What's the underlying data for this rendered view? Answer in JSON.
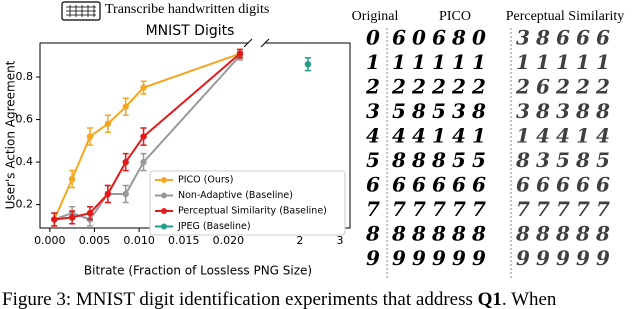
{
  "figure": {
    "instruction": "Transcribe handwritten digits",
    "caption": {
      "prefix": "Figure 3: MNIST digit identification experiments that address ",
      "bold": "Q1",
      "suffix": ". When"
    },
    "panel_headers": [
      "Original",
      "PICO",
      "Perceptual Similarity"
    ],
    "digit_grid": [
      [
        "0",
        "6",
        "0",
        "6",
        "8",
        "0",
        "3",
        "8",
        "6",
        "6",
        "6"
      ],
      [
        "1",
        "1",
        "1",
        "1",
        "1",
        "1",
        "1",
        "1",
        "1",
        "1",
        "1"
      ],
      [
        "2",
        "2",
        "2",
        "2",
        "2",
        "2",
        "2",
        "6",
        "2",
        "2",
        "2"
      ],
      [
        "3",
        "5",
        "8",
        "5",
        "3",
        "8",
        "3",
        "8",
        "3",
        "8",
        "8"
      ],
      [
        "4",
        "4",
        "4",
        "1",
        "4",
        "1",
        "1",
        "4",
        "4",
        "1",
        "4"
      ],
      [
        "5",
        "8",
        "8",
        "8",
        "5",
        "5",
        "8",
        "3",
        "5",
        "8",
        "5"
      ],
      [
        "6",
        "6",
        "6",
        "6",
        "6",
        "6",
        "6",
        "6",
        "6",
        "6",
        "6"
      ],
      [
        "7",
        "7",
        "7",
        "7",
        "7",
        "7",
        "7",
        "7",
        "7",
        "7",
        "7"
      ],
      [
        "8",
        "8",
        "8",
        "8",
        "8",
        "8",
        "8",
        "8",
        "8",
        "8",
        "8"
      ],
      [
        "9",
        "9",
        "9",
        "9",
        "9",
        "9",
        "9",
        "9",
        "9",
        "9",
        "9"
      ]
    ]
  },
  "chart_data": {
    "type": "line",
    "title": "MNIST Digits",
    "x_label": "Bitrate (Fraction of Lossless PNG Size)",
    "y_label": "User's Action Agreement",
    "ylim": [
      0.09,
      0.96
    ],
    "yticks": [
      0.2,
      0.4,
      0.6,
      0.8
    ],
    "x_axes": [
      {
        "xlim": [
          -0.0011,
          0.0222
        ],
        "xticks": [
          {
            "value": 0,
            "label": "0.000"
          },
          0.005,
          {
            "value": 0.01,
            "label": "0.010"
          },
          0.015,
          {
            "value": 0.02,
            "label": "0.020"
          }
        ]
      },
      {
        "xlim": [
          1.13,
          3.25
        ],
        "xticks": [
          2,
          3
        ]
      }
    ],
    "legend": "lower right",
    "series": [
      {
        "name": "PICO (Ours)",
        "color": "#f5a623",
        "x_axis": 0,
        "x": [
          0.0005,
          0.0025,
          0.0045,
          0.0065,
          0.0085,
          0.0105,
          0.0213
        ],
        "values": [
          0.13,
          0.32,
          0.52,
          0.58,
          0.66,
          0.75,
          0.91
        ],
        "errors": [
          0.03,
          0.04,
          0.04,
          0.04,
          0.04,
          0.03,
          0.02
        ]
      },
      {
        "name": "Non-Adaptive (Baseline)",
        "color": "#999999",
        "x_axis": 0,
        "x": [
          0.0005,
          0.0025,
          0.0045,
          0.0065,
          0.0085,
          0.0105,
          0.0213
        ],
        "values": [
          0.13,
          0.16,
          0.13,
          0.25,
          0.25,
          0.4,
          0.9
        ],
        "errors": [
          0.03,
          0.03,
          0.03,
          0.04,
          0.04,
          0.04,
          0.02
        ]
      },
      {
        "name": "Perceptual Similarity (Baseline)",
        "color": "#e31a1c",
        "x_axis": 0,
        "x": [
          0.0005,
          0.0025,
          0.0045,
          0.0065,
          0.0085,
          0.0105,
          0.0213
        ],
        "values": [
          0.13,
          0.14,
          0.16,
          0.25,
          0.4,
          0.52,
          0.91
        ],
        "errors": [
          0.03,
          0.03,
          0.03,
          0.04,
          0.04,
          0.04,
          0.02
        ]
      },
      {
        "name": "JPEG (Baseline)",
        "color": "#1f9e89",
        "x_axis": 1,
        "x": [
          2.2
        ],
        "values": [
          0.86
        ],
        "errors": [
          0.03
        ]
      }
    ]
  }
}
